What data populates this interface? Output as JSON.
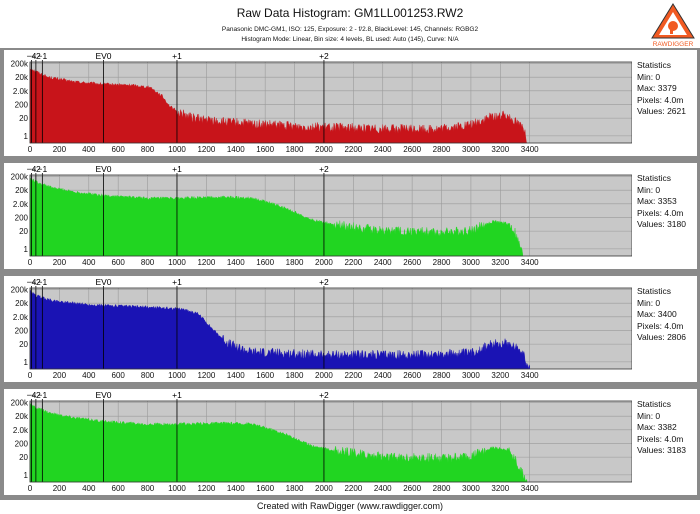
{
  "window": {
    "title": "Raw Data Histogram: GM1LL001253.RW2",
    "info_line1": "Panasonic DMC-GM1, ISO: 125, Exposure: 2 - f/2.8, BlackLevel: 145, Channels: RGBG2",
    "info_line2": "Histogram Mode: Linear, Bin size: 4 levels, BL used: Auto (145), Curve: N/A",
    "logo_text": "RAWDIGGER",
    "footer": "Created with RawDigger (www.rawdigger.com)"
  },
  "colors": {
    "red": "#c8141a",
    "green": "#21d521",
    "blue": "#1a13b4",
    "g2": "#21d521",
    "logo_orange": "#f15a22",
    "plot_bg": "#c8c8c8"
  },
  "chart_data": [
    {
      "type": "area",
      "channel": "R",
      "color": "#c8141a",
      "x_ticks": [
        "0",
        "200",
        "400",
        "600",
        "800",
        "1000",
        "1200",
        "1400",
        "1600",
        "1800",
        "2000",
        "2200",
        "2400",
        "2600",
        "2800",
        "3000",
        "3200",
        "3400"
      ],
      "y_ticks": [
        "200k",
        "20k",
        "2.0k",
        "200",
        "20",
        "1"
      ],
      "ev_labels": [
        {
          "label": "−4",
          "x": 10
        },
        {
          "label": "−2",
          "x": 40
        },
        {
          "label": "−1",
          "x": 84
        },
        {
          "label": "EV0",
          "x": 500
        },
        {
          "label": "+1",
          "x": 1000
        },
        {
          "label": "+2",
          "x": 2000
        }
      ],
      "profile": [
        [
          0,
          90000
        ],
        [
          30,
          60000
        ],
        [
          120,
          20000
        ],
        [
          300,
          9000
        ],
        [
          500,
          6000
        ],
        [
          700,
          5000
        ],
        [
          820,
          3500
        ],
        [
          900,
          800
        ],
        [
          950,
          150
        ],
        [
          1000,
          60
        ],
        [
          1100,
          20
        ],
        [
          1300,
          10
        ],
        [
          1600,
          6
        ],
        [
          2000,
          4
        ],
        [
          2500,
          3
        ],
        [
          2800,
          3
        ],
        [
          3000,
          6
        ],
        [
          3150,
          25
        ],
        [
          3250,
          30
        ],
        [
          3300,
          12
        ],
        [
          3370,
          3
        ],
        [
          3379,
          0
        ]
      ],
      "stats": {
        "title": "Statistics",
        "min": "Min: 0",
        "max": "Max: 3379",
        "pixels": "Pixels: 4.0m",
        "values": "Values: 2621"
      }
    },
    {
      "type": "area",
      "channel": "G",
      "color": "#21d521",
      "x_ticks": [
        "0",
        "200",
        "400",
        "600",
        "800",
        "1000",
        "1200",
        "1400",
        "1600",
        "1800",
        "2000",
        "2200",
        "2400",
        "2600",
        "2800",
        "3000",
        "3200",
        "3400"
      ],
      "y_ticks": [
        "200k",
        "20k",
        "2.0k",
        "200",
        "20",
        "1"
      ],
      "ev_labels": [
        {
          "label": "−4",
          "x": 10
        },
        {
          "label": "−2",
          "x": 40
        },
        {
          "label": "−1",
          "x": 84
        },
        {
          "label": "EV0",
          "x": 500
        },
        {
          "label": "+1",
          "x": 1000
        },
        {
          "label": "+2",
          "x": 2000
        }
      ],
      "profile": [
        [
          0,
          150000
        ],
        [
          40,
          80000
        ],
        [
          150,
          30000
        ],
        [
          300,
          15000
        ],
        [
          500,
          8000
        ],
        [
          800,
          5000
        ],
        [
          1000,
          5000
        ],
        [
          1300,
          6000
        ],
        [
          1500,
          5500
        ],
        [
          1650,
          2000
        ],
        [
          1800,
          500
        ],
        [
          1900,
          150
        ],
        [
          2100,
          50
        ],
        [
          2400,
          20
        ],
        [
          2800,
          15
        ],
        [
          3000,
          20
        ],
        [
          3150,
          100
        ],
        [
          3250,
          70
        ],
        [
          3300,
          15
        ],
        [
          3353,
          0
        ]
      ],
      "stats": {
        "title": "Statistics",
        "min": "Min: 0",
        "max": "Max: 3353",
        "pixels": "Pixels: 4.0m",
        "values": "Values: 3180"
      }
    },
    {
      "type": "area",
      "channel": "B",
      "color": "#1a13b4",
      "x_ticks": [
        "0",
        "200",
        "400",
        "600",
        "800",
        "1000",
        "1200",
        "1400",
        "1600",
        "1800",
        "2000",
        "2200",
        "2400",
        "2600",
        "2800",
        "3000",
        "3200",
        "3400"
      ],
      "y_ticks": [
        "200k",
        "20k",
        "2.0k",
        "200",
        "20",
        "1"
      ],
      "ev_labels": [
        {
          "label": "−4",
          "x": 10
        },
        {
          "label": "−2",
          "x": 40
        },
        {
          "label": "−1",
          "x": 84
        },
        {
          "label": "EV0",
          "x": 500
        },
        {
          "label": "+1",
          "x": 1000
        },
        {
          "label": "+2",
          "x": 2000
        }
      ],
      "profile": [
        [
          0,
          150000
        ],
        [
          40,
          70000
        ],
        [
          150,
          30000
        ],
        [
          400,
          15000
        ],
        [
          600,
          12000
        ],
        [
          900,
          9000
        ],
        [
          1050,
          7000
        ],
        [
          1150,
          3000
        ],
        [
          1250,
          200
        ],
        [
          1350,
          20
        ],
        [
          1500,
          5
        ],
        [
          2000,
          3
        ],
        [
          2600,
          3
        ],
        [
          3000,
          4
        ],
        [
          3150,
          20
        ],
        [
          3250,
          25
        ],
        [
          3350,
          6
        ],
        [
          3400,
          0
        ]
      ],
      "stats": {
        "title": "Statistics",
        "min": "Min: 0",
        "max": "Max: 3400",
        "pixels": "Pixels: 4.0m",
        "values": "Values: 2806"
      }
    },
    {
      "type": "area",
      "channel": "G2",
      "color": "#21d521",
      "x_ticks": [
        "0",
        "200",
        "400",
        "600",
        "800",
        "1000",
        "1200",
        "1400",
        "1600",
        "1800",
        "2000",
        "2200",
        "2400",
        "2600",
        "2800",
        "3000",
        "3200",
        "3400"
      ],
      "y_ticks": [
        "200k",
        "20k",
        "2.0k",
        "200",
        "20",
        "1"
      ],
      "ev_labels": [
        {
          "label": "−4",
          "x": 10
        },
        {
          "label": "−2",
          "x": 40
        },
        {
          "label": "−1",
          "x": 84
        },
        {
          "label": "EV0",
          "x": 500
        },
        {
          "label": "+1",
          "x": 1000
        },
        {
          "label": "+2",
          "x": 2000
        }
      ],
      "profile": [
        [
          0,
          150000
        ],
        [
          40,
          80000
        ],
        [
          150,
          30000
        ],
        [
          300,
          15000
        ],
        [
          500,
          8000
        ],
        [
          800,
          5000
        ],
        [
          1000,
          5000
        ],
        [
          1300,
          6000
        ],
        [
          1500,
          5500
        ],
        [
          1650,
          2000
        ],
        [
          1800,
          500
        ],
        [
          1900,
          150
        ],
        [
          2100,
          50
        ],
        [
          2400,
          20
        ],
        [
          2800,
          15
        ],
        [
          3000,
          20
        ],
        [
          3150,
          100
        ],
        [
          3250,
          70
        ],
        [
          3300,
          15
        ],
        [
          3382,
          0
        ]
      ],
      "stats": {
        "title": "Statistics",
        "min": "Min: 0",
        "max": "Max: 3382",
        "pixels": "Pixels: 4.0m",
        "values": "Values: 3183"
      }
    }
  ]
}
